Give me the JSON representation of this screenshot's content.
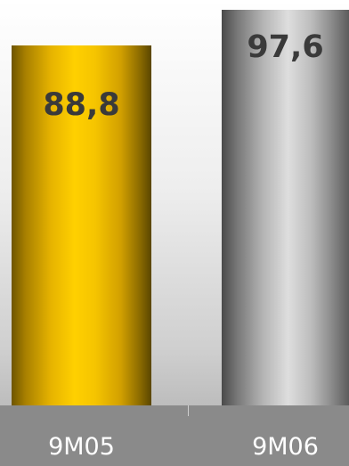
{
  "chart_data": {
    "type": "bar",
    "categories": [
      "9M05",
      "9M06"
    ],
    "values": [
      88.8,
      97.6
    ],
    "value_labels": [
      "88,8",
      "97,6"
    ],
    "title": "",
    "xlabel": "",
    "ylabel": "",
    "ylim": [
      0,
      100
    ],
    "grid": false,
    "legend": "none",
    "colors": {
      "bar_9m05": "#ffd000",
      "bar_9m06": "#b3b3b3",
      "value_text": "#3a3a3a",
      "category_text": "#ffffff",
      "axis_band": "#8a8a8a"
    }
  }
}
